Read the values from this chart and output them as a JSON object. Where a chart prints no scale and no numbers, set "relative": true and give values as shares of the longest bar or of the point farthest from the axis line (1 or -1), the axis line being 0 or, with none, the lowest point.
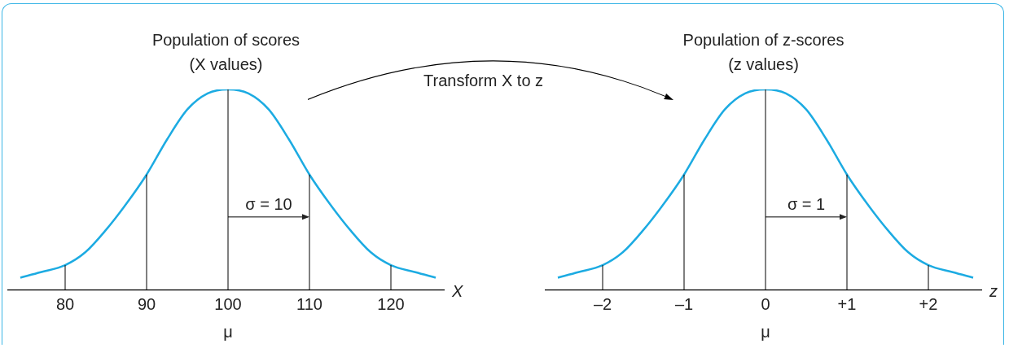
{
  "chart_data": [
    {
      "type": "line",
      "title": "Population of scores",
      "subtitle": "(X values)",
      "xlabel": "X",
      "relative": true,
      "grid": false,
      "legend": false,
      "marker": "none",
      "xlim": [
        73,
        126.5
      ],
      "xticks": [
        80,
        90,
        100,
        110,
        120
      ],
      "series": [
        {
          "color": "#1cabe2",
          "x": [
            74.5,
            77,
            80,
            82.5,
            85,
            87.5,
            90,
            92.5,
            95,
            97.5,
            100,
            102.5,
            105,
            107.5,
            110,
            112.5,
            115,
            117.5,
            120,
            123,
            125.5
          ],
          "values": [
            0.063,
            0.09,
            0.125,
            0.19,
            0.3,
            0.43,
            0.576,
            0.75,
            0.9,
            0.98,
            1,
            0.98,
            0.9,
            0.75,
            0.576,
            0.43,
            0.3,
            0.19,
            0.125,
            0.09,
            0.063
          ]
        }
      ],
      "ref_lines": [
        {
          "axis": "x",
          "value": 80,
          "color": "#000000"
        },
        {
          "axis": "x",
          "value": 90,
          "color": "#000000"
        },
        {
          "axis": "x",
          "value": 100,
          "color": "#000000"
        },
        {
          "axis": "x",
          "value": 110,
          "color": "#000000"
        },
        {
          "axis": "x",
          "value": 120,
          "color": "#000000"
        }
      ],
      "annotations": [
        "σ = 10",
        "μ",
        "Transform X to z"
      ]
    },
    {
      "type": "line",
      "title": "Population of z-scores",
      "subtitle": "(z values)",
      "xlabel": "z",
      "relative": true,
      "grid": false,
      "legend": false,
      "marker": "none",
      "xlim": [
        -2.7,
        2.65
      ],
      "xticks": [
        {
          "value": -2,
          "label": "–2"
        },
        {
          "value": -1,
          "label": "–1"
        },
        0,
        {
          "value": 1,
          "label": "+1"
        },
        {
          "value": 2,
          "label": "+2"
        }
      ],
      "series": [
        {
          "color": "#1cabe2",
          "x": [
            -2.55,
            -2.3,
            -2,
            -1.75,
            -1.5,
            -1.25,
            -1,
            -0.75,
            -0.5,
            -0.25,
            0,
            0.25,
            0.5,
            0.75,
            1,
            1.25,
            1.5,
            1.75,
            2,
            2.3,
            2.55
          ],
          "values": [
            0.063,
            0.09,
            0.125,
            0.19,
            0.3,
            0.43,
            0.576,
            0.75,
            0.9,
            0.98,
            1,
            0.98,
            0.9,
            0.75,
            0.576,
            0.43,
            0.3,
            0.19,
            0.125,
            0.09,
            0.063
          ]
        }
      ],
      "ref_lines": [
        {
          "axis": "x",
          "value": -2,
          "color": "#000000"
        },
        {
          "axis": "x",
          "value": -1,
          "color": "#000000"
        },
        {
          "axis": "x",
          "value": 0,
          "color": "#000000"
        },
        {
          "axis": "x",
          "value": 1,
          "color": "#000000"
        },
        {
          "axis": "x",
          "value": 2,
          "color": "#000000"
        }
      ],
      "annotations": [
        "σ = 1",
        "μ"
      ]
    }
  ]
}
